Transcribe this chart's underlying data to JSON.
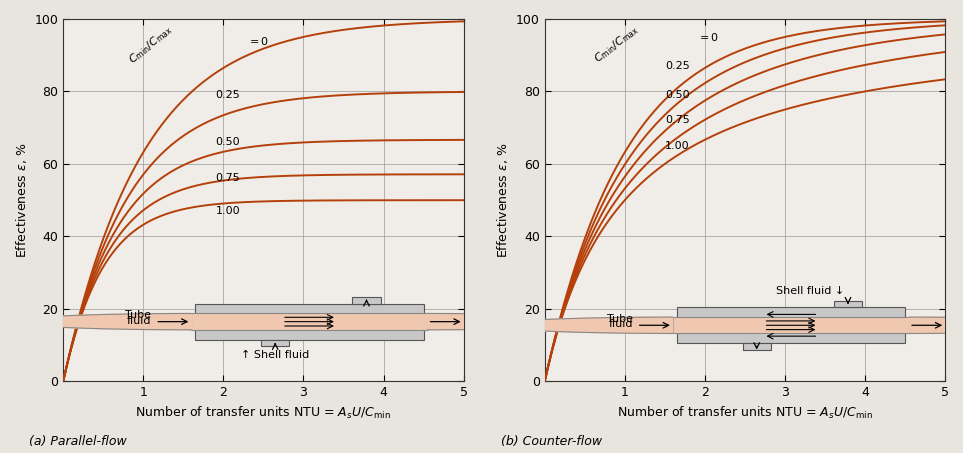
{
  "curve_color": "#b5400a",
  "bg_color": "#f0ede8",
  "grid_color": "#999999",
  "r_values": [
    0,
    0.25,
    0.5,
    0.75,
    1.0
  ],
  "xlim": [
    0,
    5
  ],
  "ylim": [
    0,
    100
  ],
  "xticks": [
    1,
    2,
    3,
    4,
    5
  ],
  "yticks": [
    0,
    20,
    40,
    60,
    80,
    100
  ],
  "xlabel": "Number of transfer units NTU = $A_sU/C_{\\mathrm{min}}$",
  "ylabel": "Effectiveness $\\varepsilon$, %",
  "label_a": "(a) Parallel-flow",
  "label_b": "(b) Counter-flow",
  "shell_color": "#c8c8c8",
  "shell_edge": "#555555",
  "tube_color": "#f0c8b0",
  "tube_edge": "#888888"
}
